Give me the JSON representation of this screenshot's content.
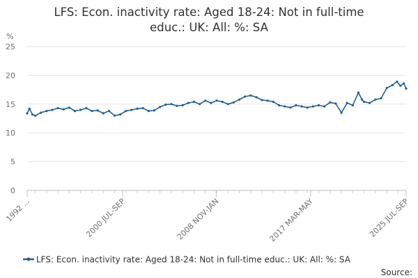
{
  "chart_data": {
    "type": "line",
    "title_lines": [
      "LFS: Econ. inactivity rate: Aged 18-24: Not in full-time",
      "educ.: UK: All: %: SA"
    ],
    "ylabel": "%",
    "xlabel": "",
    "ylim": [
      0,
      25
    ],
    "yticks": [
      "0",
      "5",
      "10",
      "15",
      "20",
      "25"
    ],
    "xlim": [
      1992.29,
      2025.71
    ],
    "xticks": [
      {
        "label": "1992 ...",
        "x": 1992.29
      },
      {
        "label": "2000 JUL-SEP",
        "x": 2000.71
      },
      {
        "label": "2008 NOV-JAN",
        "x": 2008.96
      },
      {
        "label": "2017 MAR-MAY",
        "x": 2017.29
      },
      {
        "label": "2025 JUL-SEP",
        "x": 2025.71
      }
    ],
    "grid": true,
    "legend_position": "bottom",
    "source_label": "Source:",
    "series": [
      {
        "name": "LFS: Econ. inactivity rate: Aged 18-24: Not in full-time educ.: UK: All: %: SA",
        "color": "#206095",
        "points": [
          [
            1992.29,
            13.4
          ],
          [
            1992.5,
            14.2
          ],
          [
            1992.75,
            13.2
          ],
          [
            1993.0,
            13.0
          ],
          [
            1993.5,
            13.5
          ],
          [
            1994.0,
            13.8
          ],
          [
            1994.5,
            14.0
          ],
          [
            1995.0,
            14.3
          ],
          [
            1995.5,
            14.1
          ],
          [
            1996.0,
            14.4
          ],
          [
            1996.5,
            13.8
          ],
          [
            1997.0,
            14.0
          ],
          [
            1997.5,
            14.3
          ],
          [
            1998.0,
            13.8
          ],
          [
            1998.5,
            13.9
          ],
          [
            1999.0,
            13.4
          ],
          [
            1999.5,
            13.8
          ],
          [
            2000.0,
            13.0
          ],
          [
            2000.5,
            13.2
          ],
          [
            2001.0,
            13.8
          ],
          [
            2001.5,
            14.0
          ],
          [
            2002.0,
            14.2
          ],
          [
            2002.5,
            14.3
          ],
          [
            2003.0,
            13.8
          ],
          [
            2003.5,
            13.9
          ],
          [
            2004.0,
            14.5
          ],
          [
            2004.5,
            14.9
          ],
          [
            2005.0,
            15.0
          ],
          [
            2005.5,
            14.7
          ],
          [
            2006.0,
            14.8
          ],
          [
            2006.5,
            15.2
          ],
          [
            2007.0,
            15.4
          ],
          [
            2007.5,
            15.0
          ],
          [
            2008.0,
            15.6
          ],
          [
            2008.5,
            15.2
          ],
          [
            2009.0,
            15.6
          ],
          [
            2009.5,
            15.4
          ],
          [
            2010.0,
            15.0
          ],
          [
            2010.5,
            15.3
          ],
          [
            2011.0,
            15.8
          ],
          [
            2011.5,
            16.3
          ],
          [
            2012.0,
            16.5
          ],
          [
            2012.5,
            16.2
          ],
          [
            2013.0,
            15.7
          ],
          [
            2013.5,
            15.6
          ],
          [
            2014.0,
            15.4
          ],
          [
            2014.5,
            14.8
          ],
          [
            2015.0,
            14.6
          ],
          [
            2015.5,
            14.4
          ],
          [
            2016.0,
            14.8
          ],
          [
            2016.5,
            14.6
          ],
          [
            2017.0,
            14.4
          ],
          [
            2017.5,
            14.6
          ],
          [
            2018.0,
            14.8
          ],
          [
            2018.5,
            14.6
          ],
          [
            2019.0,
            15.3
          ],
          [
            2019.5,
            15.1
          ],
          [
            2020.0,
            13.5
          ],
          [
            2020.5,
            15.2
          ],
          [
            2021.0,
            14.8
          ],
          [
            2021.5,
            17.0
          ],
          [
            2021.8,
            15.8
          ],
          [
            2022.0,
            15.4
          ],
          [
            2022.5,
            15.2
          ],
          [
            2023.0,
            15.8
          ],
          [
            2023.5,
            16.0
          ],
          [
            2024.0,
            17.8
          ],
          [
            2024.5,
            18.3
          ],
          [
            2024.9,
            18.9
          ],
          [
            2025.2,
            18.2
          ],
          [
            2025.5,
            18.6
          ],
          [
            2025.71,
            17.7
          ]
        ]
      }
    ]
  }
}
